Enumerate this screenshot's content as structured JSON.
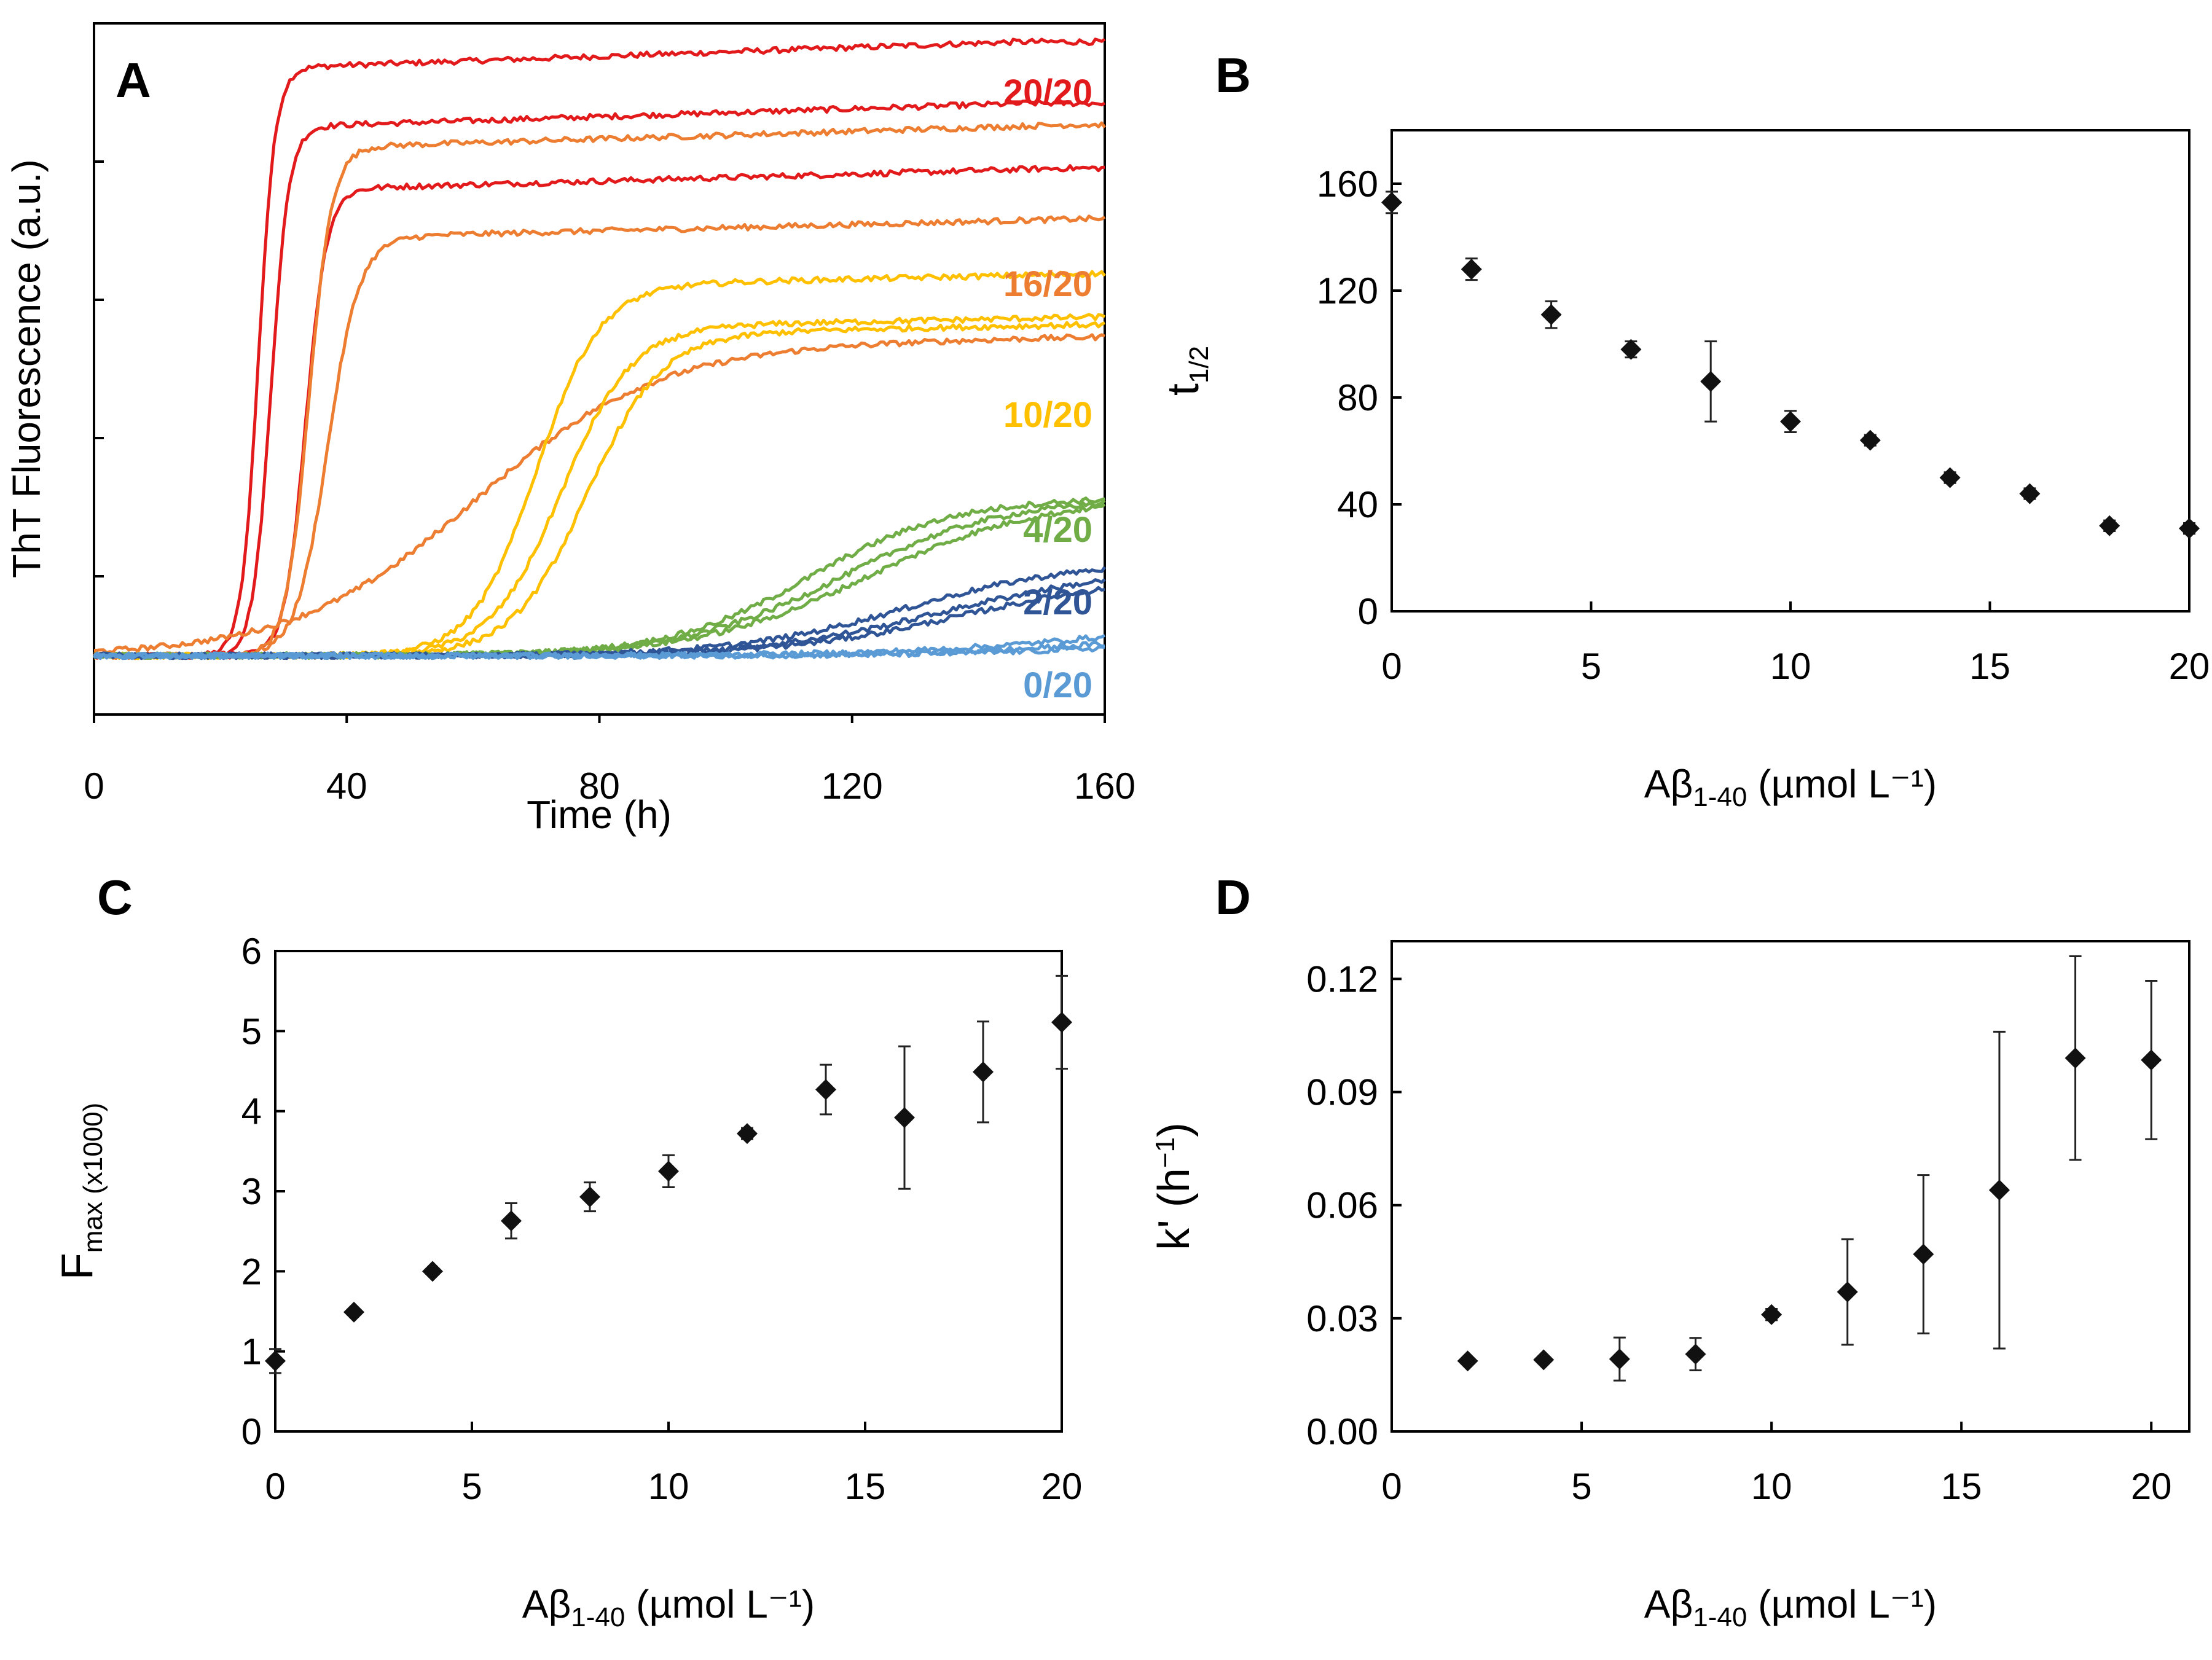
{
  "chart_data": [
    {
      "panel": "A",
      "type": "line",
      "ylabel": "ThT Fluorescence (a.u.)",
      "xlabel": "Time (h)",
      "xlim": [
        0,
        160
      ],
      "ylim": [
        0,
        1
      ],
      "xticks": [
        "0",
        "40",
        "80",
        "120",
        "160"
      ],
      "yticks_unlabeled": [
        0.2,
        0.4,
        0.6,
        0.8,
        1.0
      ],
      "series_labels": [
        "20/20",
        "16/20",
        "10/20",
        "4/20",
        "2/20",
        "0/20"
      ],
      "series": [
        {
          "group": "20/20",
          "color": "#e31a1c",
          "t_half": 26,
          "k": 0.75,
          "plateau": 0.935
        },
        {
          "group": "20/20",
          "color": "#e31a1c",
          "t_half": 28,
          "k": 0.7,
          "plateau": 0.85
        },
        {
          "group": "20/20",
          "color": "#e31a1c",
          "t_half": 33.5,
          "k": 0.6,
          "plateau": 0.76
        },
        {
          "group": "16/20",
          "color": "#ed7d31",
          "t_half": 34,
          "k": 0.55,
          "plateau": 0.82
        },
        {
          "group": "16/20",
          "color": "#ed7d31",
          "t_half": 37,
          "k": 0.4,
          "plateau": 0.69
        },
        {
          "group": "16/20",
          "color": "#ed7d31",
          "t_half": 60,
          "k": 0.07,
          "plateau": 0.53
        },
        {
          "group": "10/20",
          "color": "#ffc000",
          "t_half": 70,
          "k": 0.2,
          "plateau": 0.62
        },
        {
          "group": "10/20",
          "color": "#ffc000",
          "t_half": 74,
          "k": 0.18,
          "plateau": 0.56
        },
        {
          "group": "10/20",
          "color": "#ffc000",
          "t_half": 78,
          "k": 0.17,
          "plateau": 0.55
        },
        {
          "group": "4/20",
          "color": "#70ad47",
          "t_half": 113,
          "k": 0.09,
          "plateau": 0.31
        },
        {
          "group": "4/20",
          "color": "#70ad47",
          "t_half": 118,
          "k": 0.08,
          "plateau": 0.31
        },
        {
          "group": "4/20",
          "color": "#70ad47",
          "t_half": 122,
          "k": 0.075,
          "plateau": 0.31
        },
        {
          "group": "2/20",
          "color": "#2f5597",
          "t_half": 128,
          "k": 0.075,
          "plateau": 0.22
        },
        {
          "group": "2/20",
          "color": "#2f5597",
          "t_half": 134,
          "k": 0.07,
          "plateau": 0.21
        },
        {
          "group": "2/20",
          "color": "#2f5597",
          "t_half": 137,
          "k": 0.07,
          "plateau": 0.2
        },
        {
          "group": "0/20",
          "color": "#5b9bd5",
          "t_half": 160,
          "k": 0.06,
          "plateau": 0.14
        },
        {
          "group": "0/20",
          "color": "#5b9bd5",
          "t_half": 168,
          "k": 0.06,
          "plateau": 0.13
        },
        {
          "group": "0/20",
          "color": "#5b9bd5",
          "t_half": 172,
          "k": 0.06,
          "plateau": 0.12
        }
      ]
    },
    {
      "panel": "B",
      "type": "scatter",
      "ylabel": "t",
      "ylabel_sub": "1/2",
      "xlabel": "Aβ",
      "xlabel_sub": "1-40",
      "xlabel_unit": " (µmol L⁻¹)",
      "xlim": [
        0,
        20
      ],
      "ylim": [
        0,
        180
      ],
      "xticks": [
        0,
        5,
        10,
        15,
        20
      ],
      "yticks": [
        0,
        40,
        80,
        120,
        160
      ],
      "x": [
        0,
        2,
        4,
        6,
        8,
        10,
        12,
        14,
        16,
        18,
        20
      ],
      "y": [
        153,
        128,
        111,
        98,
        86,
        71,
        64,
        50,
        44,
        32,
        31
      ],
      "err": [
        4,
        4,
        5,
        3,
        15,
        4,
        2,
        2,
        2,
        2,
        2
      ]
    },
    {
      "panel": "C",
      "type": "scatter",
      "ylabel": "F",
      "ylabel_sub": "max (x1000)",
      "xlabel": "Aβ",
      "xlabel_sub": "1-40",
      "xlabel_unit": " (µmol L⁻¹)",
      "xlim": [
        0,
        20
      ],
      "ylim": [
        0,
        6
      ],
      "xticks": [
        0,
        5,
        10,
        15,
        20
      ],
      "yticks": [
        0,
        1,
        2,
        3,
        4,
        5,
        6
      ],
      "x": [
        0,
        2,
        4,
        6,
        8,
        10,
        12,
        14,
        16,
        18,
        20
      ],
      "y": [
        0.88,
        1.49,
        2.0,
        2.63,
        2.93,
        3.25,
        3.72,
        4.27,
        3.92,
        4.49,
        5.11
      ],
      "err": [
        0.15,
        0.04,
        0.04,
        0.22,
        0.18,
        0.2,
        0.07,
        0.31,
        0.89,
        0.63,
        0.58
      ]
    },
    {
      "panel": "D",
      "type": "scatter",
      "ylabel": "k' (h",
      "ylabel_sup": "−1",
      "ylabel_end": ")",
      "xlabel": "Aβ",
      "xlabel_sub": "1-40",
      "xlabel_unit": " (µmol L⁻¹)",
      "xlim": [
        0,
        21
      ],
      "ylim": [
        0,
        0.13
      ],
      "xticks": [
        0,
        5,
        10,
        15,
        20
      ],
      "yticks": [
        "0.00",
        "0.03",
        "0.06",
        "0.09",
        "0.12"
      ],
      "x": [
        2,
        4,
        6,
        8,
        10,
        12,
        14,
        16,
        18,
        20
      ],
      "y": [
        0.0187,
        0.019,
        0.0192,
        0.0205,
        0.031,
        0.037,
        0.047,
        0.064,
        0.099,
        0.0985
      ],
      "err": [
        0.0005,
        0.0005,
        0.0057,
        0.0043,
        0.0015,
        0.014,
        0.021,
        0.042,
        0.027,
        0.021
      ]
    }
  ],
  "panel_letters": [
    "A",
    "B",
    "C",
    "D"
  ],
  "colors": {
    "red": "#e31a1c",
    "orange": "#ed7d31",
    "yellow": "#ffc000",
    "green": "#70ad47",
    "darkblue": "#2f5597",
    "lightblue": "#5b9bd5",
    "marker": "#111111"
  }
}
